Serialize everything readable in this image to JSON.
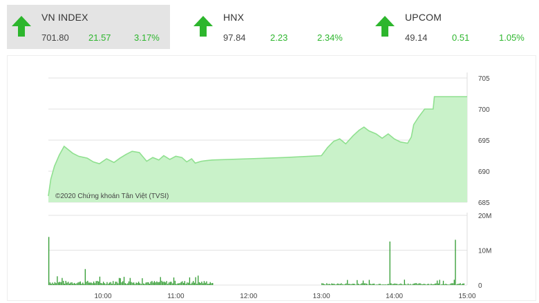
{
  "tickers": [
    {
      "name": "VN INDEX",
      "price": "701.80",
      "change": "21.57",
      "percent": "3.17%"
    },
    {
      "name": "HNX",
      "price": "97.84",
      "change": "2.23",
      "percent": "2.34%"
    },
    {
      "name": "UPCOM",
      "price": "49.14",
      "change": "0.51",
      "percent": "1.05%"
    }
  ],
  "colors": {
    "up": "#2db62d",
    "price_line": "#8fe08f",
    "price_fill": "#c9f2c9",
    "volume": "#2e9a2e",
    "grid": "#e2e2e2",
    "active_bg": "#e4e4e4"
  },
  "icons": {
    "trend": "up-arrow-icon"
  },
  "chart_data": [
    {
      "type": "area",
      "credit": "©2020 Chứng khoán Tân Việt (TVSI)",
      "ylim": [
        685,
        705
      ],
      "y_ticks": [
        "705",
        "700",
        "695",
        "690",
        "685"
      ],
      "x_ticks": [
        "10:00",
        "11:00",
        "12:00",
        "13:00",
        "14:00",
        "15:00"
      ],
      "grid": true,
      "series": [
        {
          "x": [
            "09:15",
            "09:17",
            "09:20",
            "09:24",
            "09:28",
            "09:35",
            "09:40",
            "09:47",
            "09:52",
            "09:57",
            "10:03",
            "10:09",
            "10:14",
            "10:19",
            "10:24",
            "10:30",
            "10:36",
            "10:41",
            "10:46",
            "10:50",
            "10:55",
            "11:00",
            "11:05",
            "11:09",
            "11:13",
            "11:16",
            "11:21",
            "11:25",
            "11:30",
            "12:00",
            "12:30",
            "13:00",
            "13:05",
            "13:10",
            "13:15",
            "13:20",
            "13:26",
            "13:31",
            "13:35",
            "13:39",
            "13:45",
            "13:50",
            "13:55",
            "14:00",
            "14:05",
            "14:11",
            "14:14",
            "14:16",
            "14:20",
            "14:25",
            "14:27",
            "14:32",
            "14:33",
            "14:45",
            "14:46",
            "14:57"
          ],
          "y": [
            686.0,
            688.7,
            690.8,
            692.6,
            694.0,
            692.9,
            692.4,
            692.1,
            691.5,
            691.2,
            692.0,
            691.4,
            692.1,
            692.7,
            693.2,
            693.0,
            691.6,
            692.2,
            691.8,
            692.5,
            691.9,
            692.4,
            692.2,
            691.5,
            692.0,
            691.3,
            691.6,
            691.7,
            691.8,
            692.0,
            692.2,
            692.5,
            693.8,
            694.8,
            695.2,
            694.4,
            695.7,
            696.6,
            697.1,
            696.5,
            696.0,
            695.3,
            696.0,
            695.2,
            694.7,
            694.5,
            695.5,
            697.5,
            698.7,
            700.0,
            700.0,
            700.0,
            702.0,
            702.0,
            702.0,
            702.0
          ]
        }
      ]
    },
    {
      "type": "bar",
      "ylim": [
        0,
        20
      ],
      "y_ticks": [
        "20M",
        "10M",
        "0"
      ],
      "unit": "M",
      "series": [
        {
          "name": "volume",
          "x": [
            "09:15",
            "09:45",
            "13:56",
            "14:50"
          ],
          "y": [
            13.8,
            4.6,
            12.5,
            13.0
          ]
        }
      ],
      "morning_typical_y": [
        0.9,
        1.6
      ],
      "afternoon_typical_y": [
        0.4,
        1.1
      ]
    }
  ]
}
